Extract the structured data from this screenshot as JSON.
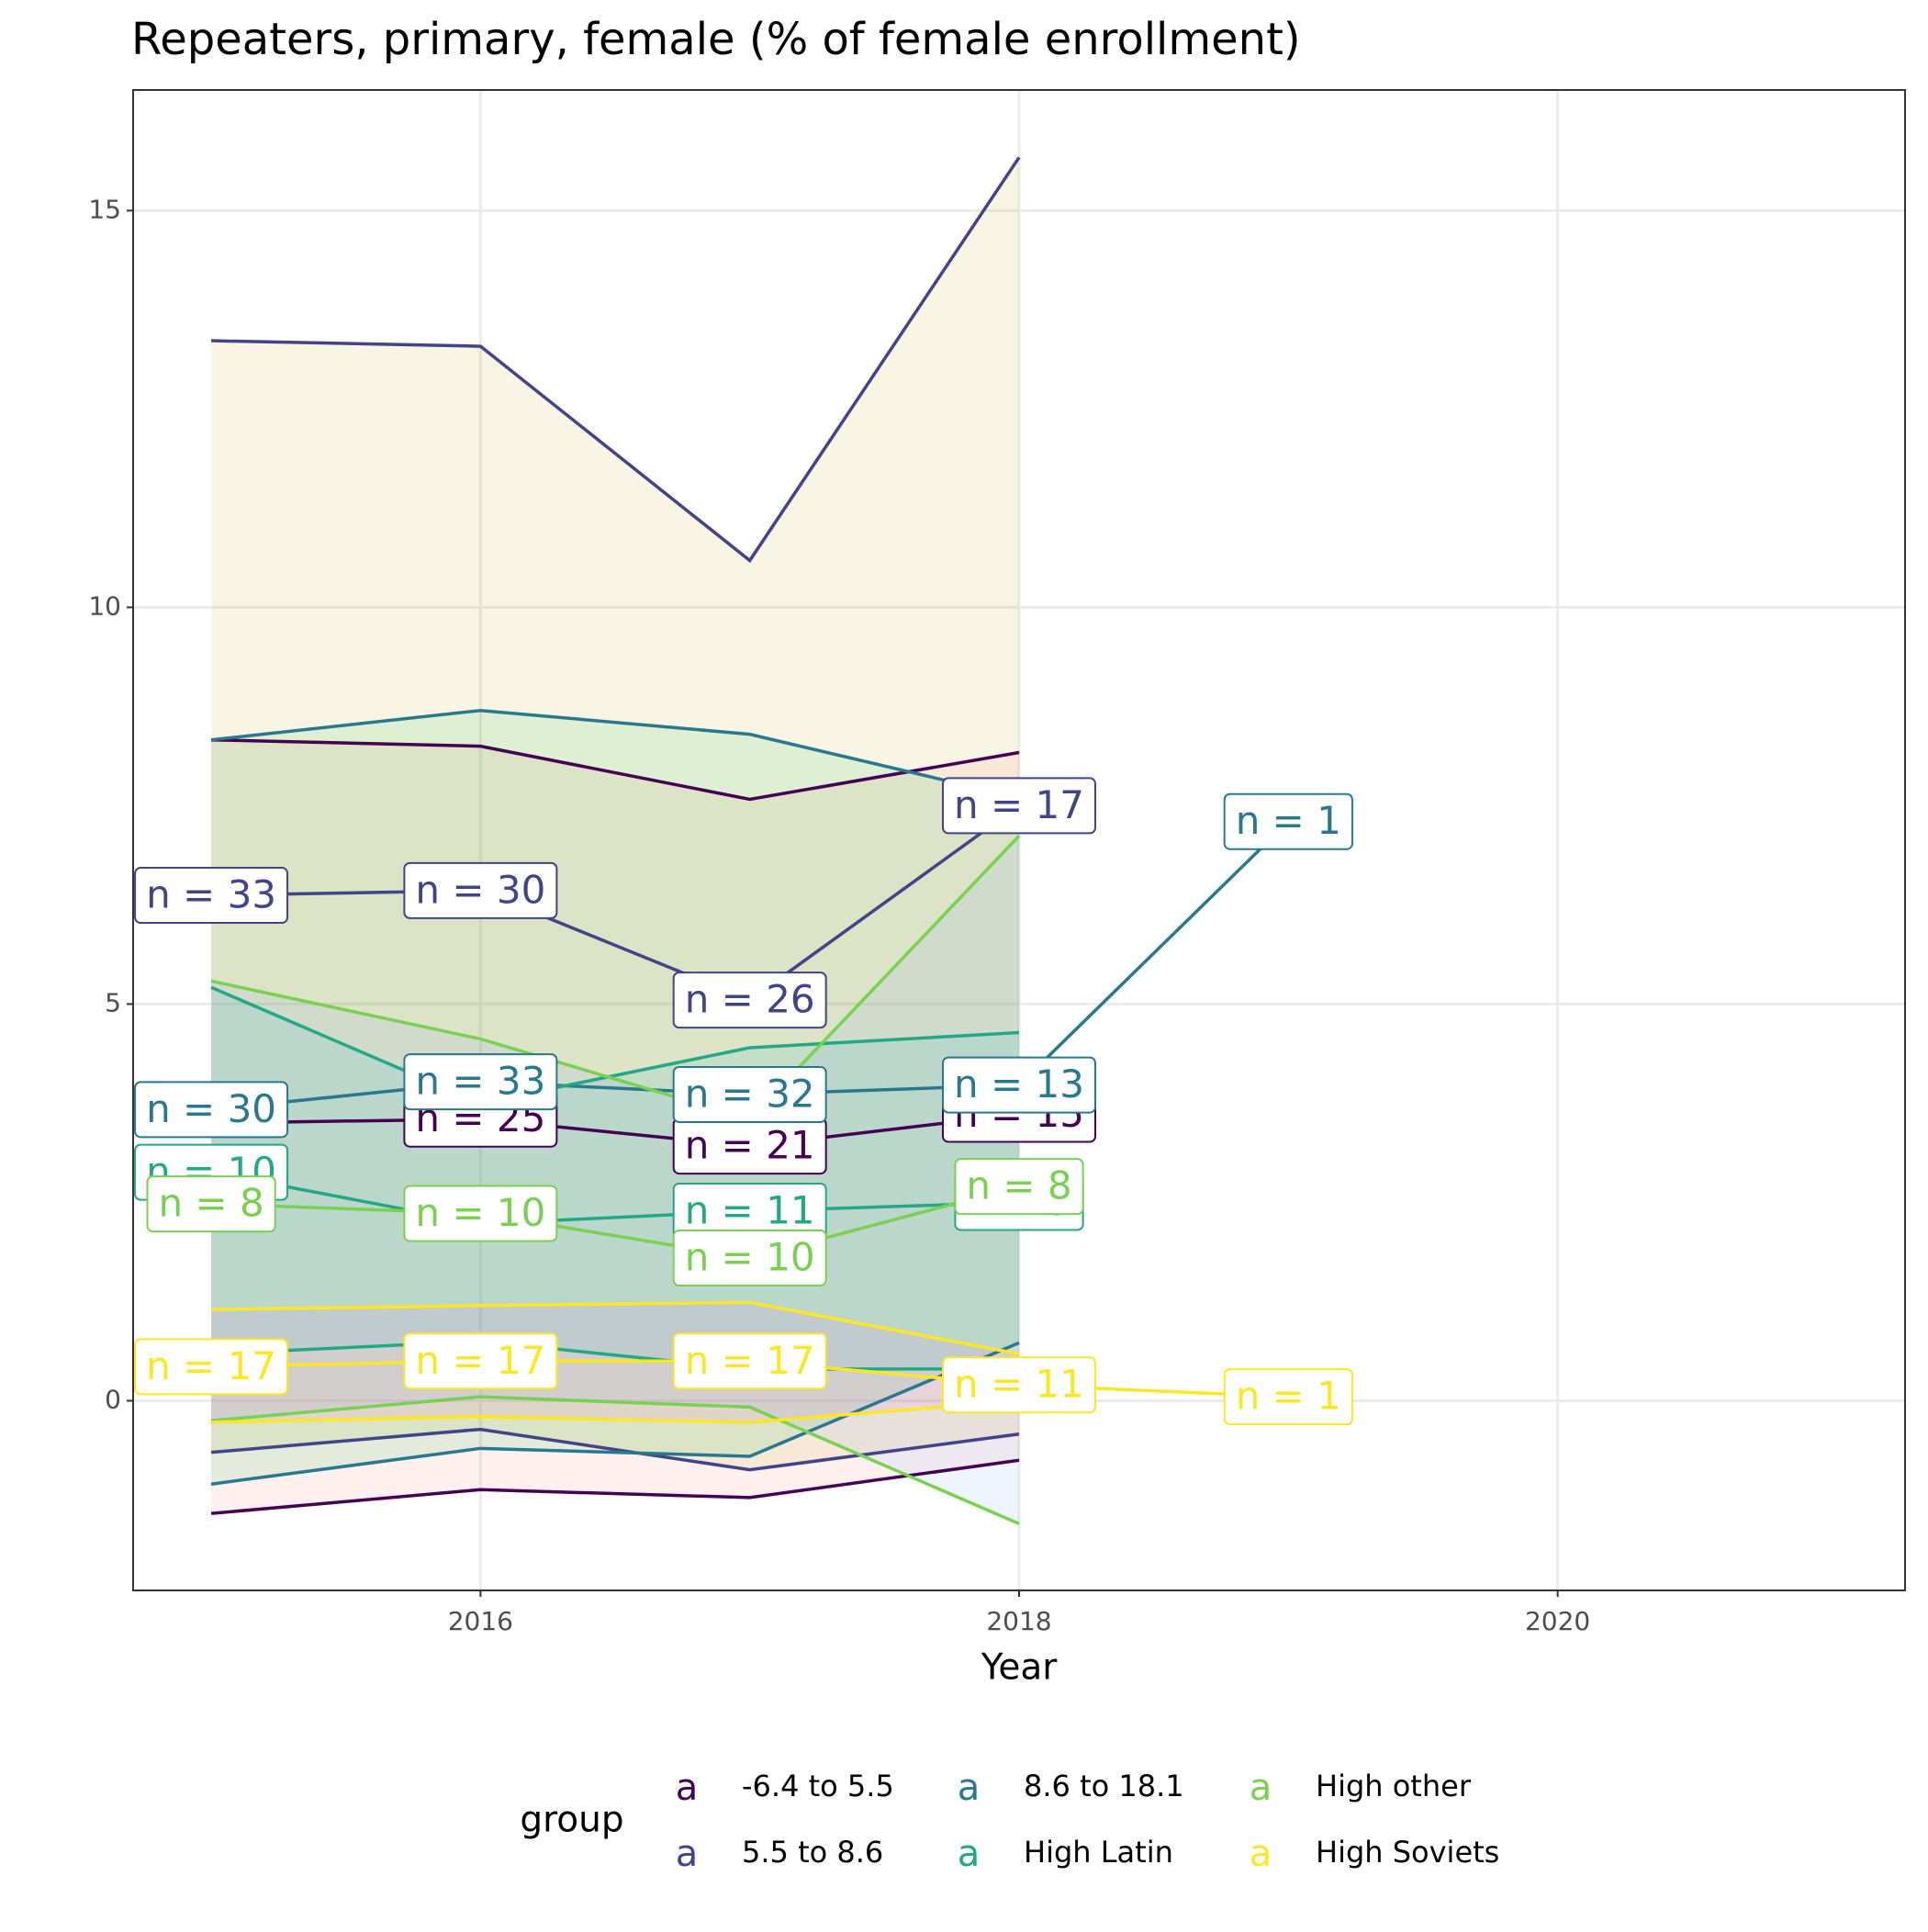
{
  "chart_data": {
    "type": "line",
    "title": "Repeaters, primary, female (% of female enrollment)",
    "x_label": "Year",
    "legend_title": "group",
    "legend_key": "a",
    "x": [
      2015,
      2016,
      2017,
      2018,
      2019
    ],
    "xlim": [
      2014.71,
      2021.29
    ],
    "ylim": [
      -2.39,
      16.52
    ],
    "xticks": [
      2016,
      2018,
      2020
    ],
    "yticks": [
      0,
      5,
      10,
      15
    ],
    "grid": true,
    "series": [
      {
        "name": "-6.4 to 5.5",
        "color": "#440154",
        "fill": "#F8766D",
        "values": [
          3.5,
          3.55,
          3.21,
          3.61,
          null
        ],
        "lower": [
          -1.42,
          -1.12,
          -1.22,
          -0.75,
          null
        ],
        "upper": [
          8.33,
          8.25,
          7.58,
          8.17,
          null
        ],
        "n_labels": [
          null,
          "n = 25",
          "n = 21",
          "n = 15",
          null
        ]
      },
      {
        "name": "5.5 to 8.6",
        "color": "#414487",
        "fill": "#B79F00",
        "values": [
          6.37,
          6.43,
          5.05,
          7.5,
          null
        ],
        "lower": [
          -0.65,
          -0.36,
          -0.87,
          -0.42,
          null
        ],
        "upper": [
          13.36,
          13.29,
          10.59,
          15.67,
          null
        ],
        "n_labels": [
          "n = 33",
          "n = 30",
          "n = 26",
          "n = 17",
          null
        ]
      },
      {
        "name": "8.6 to 18.1",
        "color": "#2A788E",
        "fill": "#00BA38",
        "values": [
          3.67,
          4.02,
          3.86,
          3.98,
          7.3
        ],
        "lower": [
          -1.05,
          -0.6,
          -0.7,
          0.73,
          null
        ],
        "upper": [
          8.33,
          8.7,
          8.4,
          7.6,
          null
        ],
        "n_labels": [
          "n = 30",
          "n = 33",
          "n = 32",
          "n = 13",
          "n = 1"
        ]
      },
      {
        "name": "High Latin",
        "color": "#22A884",
        "fill": "#00BFC4",
        "values": [
          2.88,
          2.23,
          2.39,
          2.5,
          null
        ],
        "lower": [
          0.59,
          0.75,
          0.4,
          0.4,
          null
        ],
        "upper": [
          5.21,
          3.75,
          4.45,
          4.64,
          null
        ],
        "n_labels": [
          "n = 10",
          null,
          "n = 11",
          "n = 9",
          null
        ]
      },
      {
        "name": "High other",
        "color": "#7AD151",
        "fill": "#619CFF",
        "values": [
          2.48,
          2.36,
          1.8,
          2.7,
          null
        ],
        "lower": [
          -0.25,
          0.05,
          -0.08,
          -1.55,
          null
        ],
        "upper": [
          5.29,
          4.56,
          3.55,
          7.12,
          null
        ],
        "n_labels": [
          "n = 8",
          "n = 10",
          "n = 10",
          "n = 8",
          null
        ]
      },
      {
        "name": "High Soviets",
        "color": "#FDE725",
        "fill": "#F564E3",
        "values": [
          0.43,
          0.5,
          0.5,
          0.2,
          0.05
        ],
        "lower": [
          -0.27,
          -0.2,
          -0.27,
          0,
          null
        ],
        "upper": [
          1.15,
          1.2,
          1.24,
          0.59,
          null
        ],
        "n_labels": [
          "n = 17",
          "n = 17",
          "n = 17",
          "n = 11",
          "n = 1"
        ]
      }
    ]
  }
}
